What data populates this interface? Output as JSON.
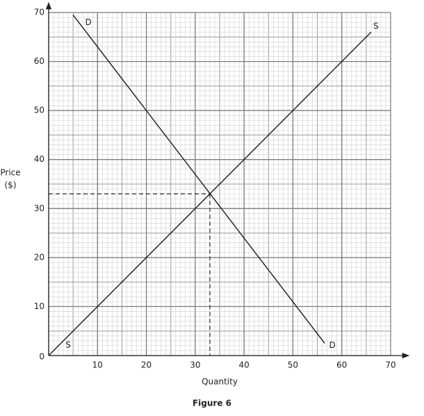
{
  "chart_data": {
    "type": "line",
    "caption": "Figure 6",
    "x_label": "Quantity",
    "y_label": [
      "Price",
      "($)"
    ],
    "series": [
      {
        "name": "D",
        "color": "#1a1a1a",
        "x": [
          5,
          56.5
        ],
        "values": [
          69.5,
          2.5
        ]
      },
      {
        "name": "S",
        "color": "#1a1a1a",
        "x": [
          0,
          66
        ],
        "values": [
          0,
          66
        ]
      }
    ],
    "equilibrium": {
      "x": 33,
      "y": 33
    },
    "xlim": [
      0,
      70
    ],
    "ylim": [
      0,
      70
    ],
    "xticks": [
      0,
      10,
      20,
      30,
      40,
      50,
      60,
      70
    ],
    "yticks": [
      0,
      10,
      20,
      30,
      40,
      50,
      60,
      70
    ],
    "grid": true
  }
}
